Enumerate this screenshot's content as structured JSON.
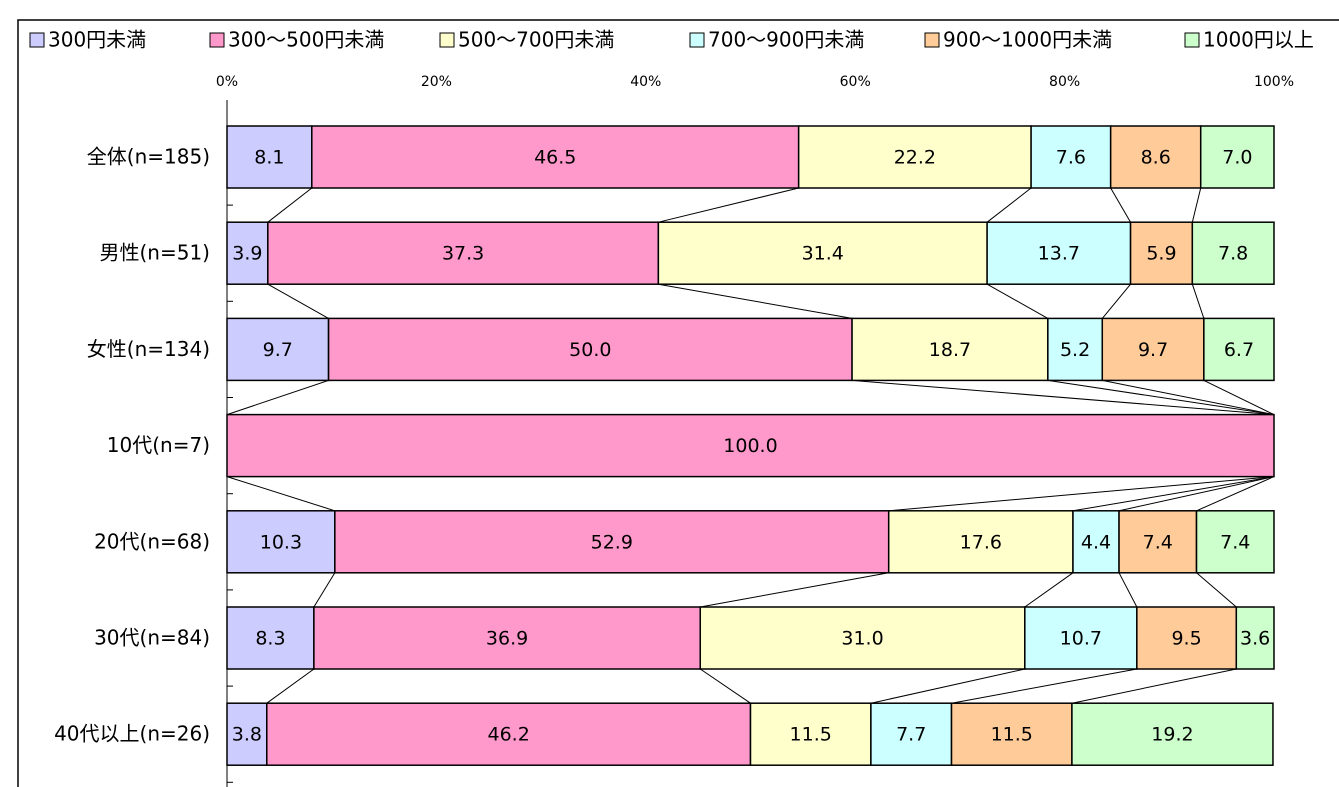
{
  "chart_data": {
    "type": "stacked-bar-horizontal",
    "categories": [
      "全体(n=185)",
      "男性(n=51)",
      "女性(n=134)",
      "10代(n=7)",
      "20代(n=68)",
      "30代(n=84)",
      "40代以上(n=26)"
    ],
    "series": [
      {
        "name": "300円未満",
        "color": "#ccccff",
        "values": [
          8.1,
          3.9,
          9.7,
          0,
          10.3,
          8.3,
          3.8
        ],
        "value_labels": [
          "8.1",
          "3.9",
          "9.7",
          null,
          "10.3",
          "8.3",
          "3.8"
        ]
      },
      {
        "name": "300～500円未満",
        "color": "#ff99cc",
        "values": [
          46.5,
          37.3,
          50.0,
          100.0,
          52.9,
          36.9,
          46.2
        ],
        "value_labels": [
          "46.5",
          "37.3",
          "50.0",
          "100.0",
          "52.9",
          "36.9",
          "46.2"
        ]
      },
      {
        "name": "500～700円未満",
        "color": "#ffffcc",
        "values": [
          22.2,
          31.4,
          18.7,
          0,
          17.6,
          31.0,
          11.5
        ],
        "value_labels": [
          "22.2",
          "31.4",
          "18.7",
          null,
          "17.6",
          "31.0",
          "11.5"
        ]
      },
      {
        "name": "700～900円未満",
        "color": "#ccffff",
        "values": [
          7.6,
          13.7,
          5.2,
          0,
          4.4,
          10.7,
          7.7
        ],
        "value_labels": [
          "7.6",
          "13.7",
          "5.2",
          null,
          "4.4",
          "10.7",
          "7.7"
        ]
      },
      {
        "name": "900～1000円未満",
        "color": "#ffcc99",
        "values": [
          8.6,
          5.9,
          9.7,
          0,
          7.4,
          9.5,
          11.5
        ],
        "value_labels": [
          "8.6",
          "5.9",
          "9.7",
          null,
          "7.4",
          "9.5",
          "11.5"
        ]
      },
      {
        "name": "1000円以上",
        "color": "#ccffcc",
        "values": [
          7.0,
          7.8,
          6.7,
          0,
          7.4,
          3.6,
          19.2
        ],
        "value_labels": [
          "7.0",
          "7.8",
          "6.7",
          null,
          "7.4",
          "3.6",
          "19.2"
        ]
      }
    ],
    "xlim": [
      0,
      100
    ],
    "xticks": [
      {
        "value": 0,
        "label": "0%"
      },
      {
        "value": 20,
        "label": "20%"
      },
      {
        "value": 40,
        "label": "40%"
      },
      {
        "value": 60,
        "label": "60%"
      },
      {
        "value": 80,
        "label": "80%"
      },
      {
        "value": 100,
        "label": "100%"
      }
    ],
    "grid": false,
    "legend": "top"
  }
}
